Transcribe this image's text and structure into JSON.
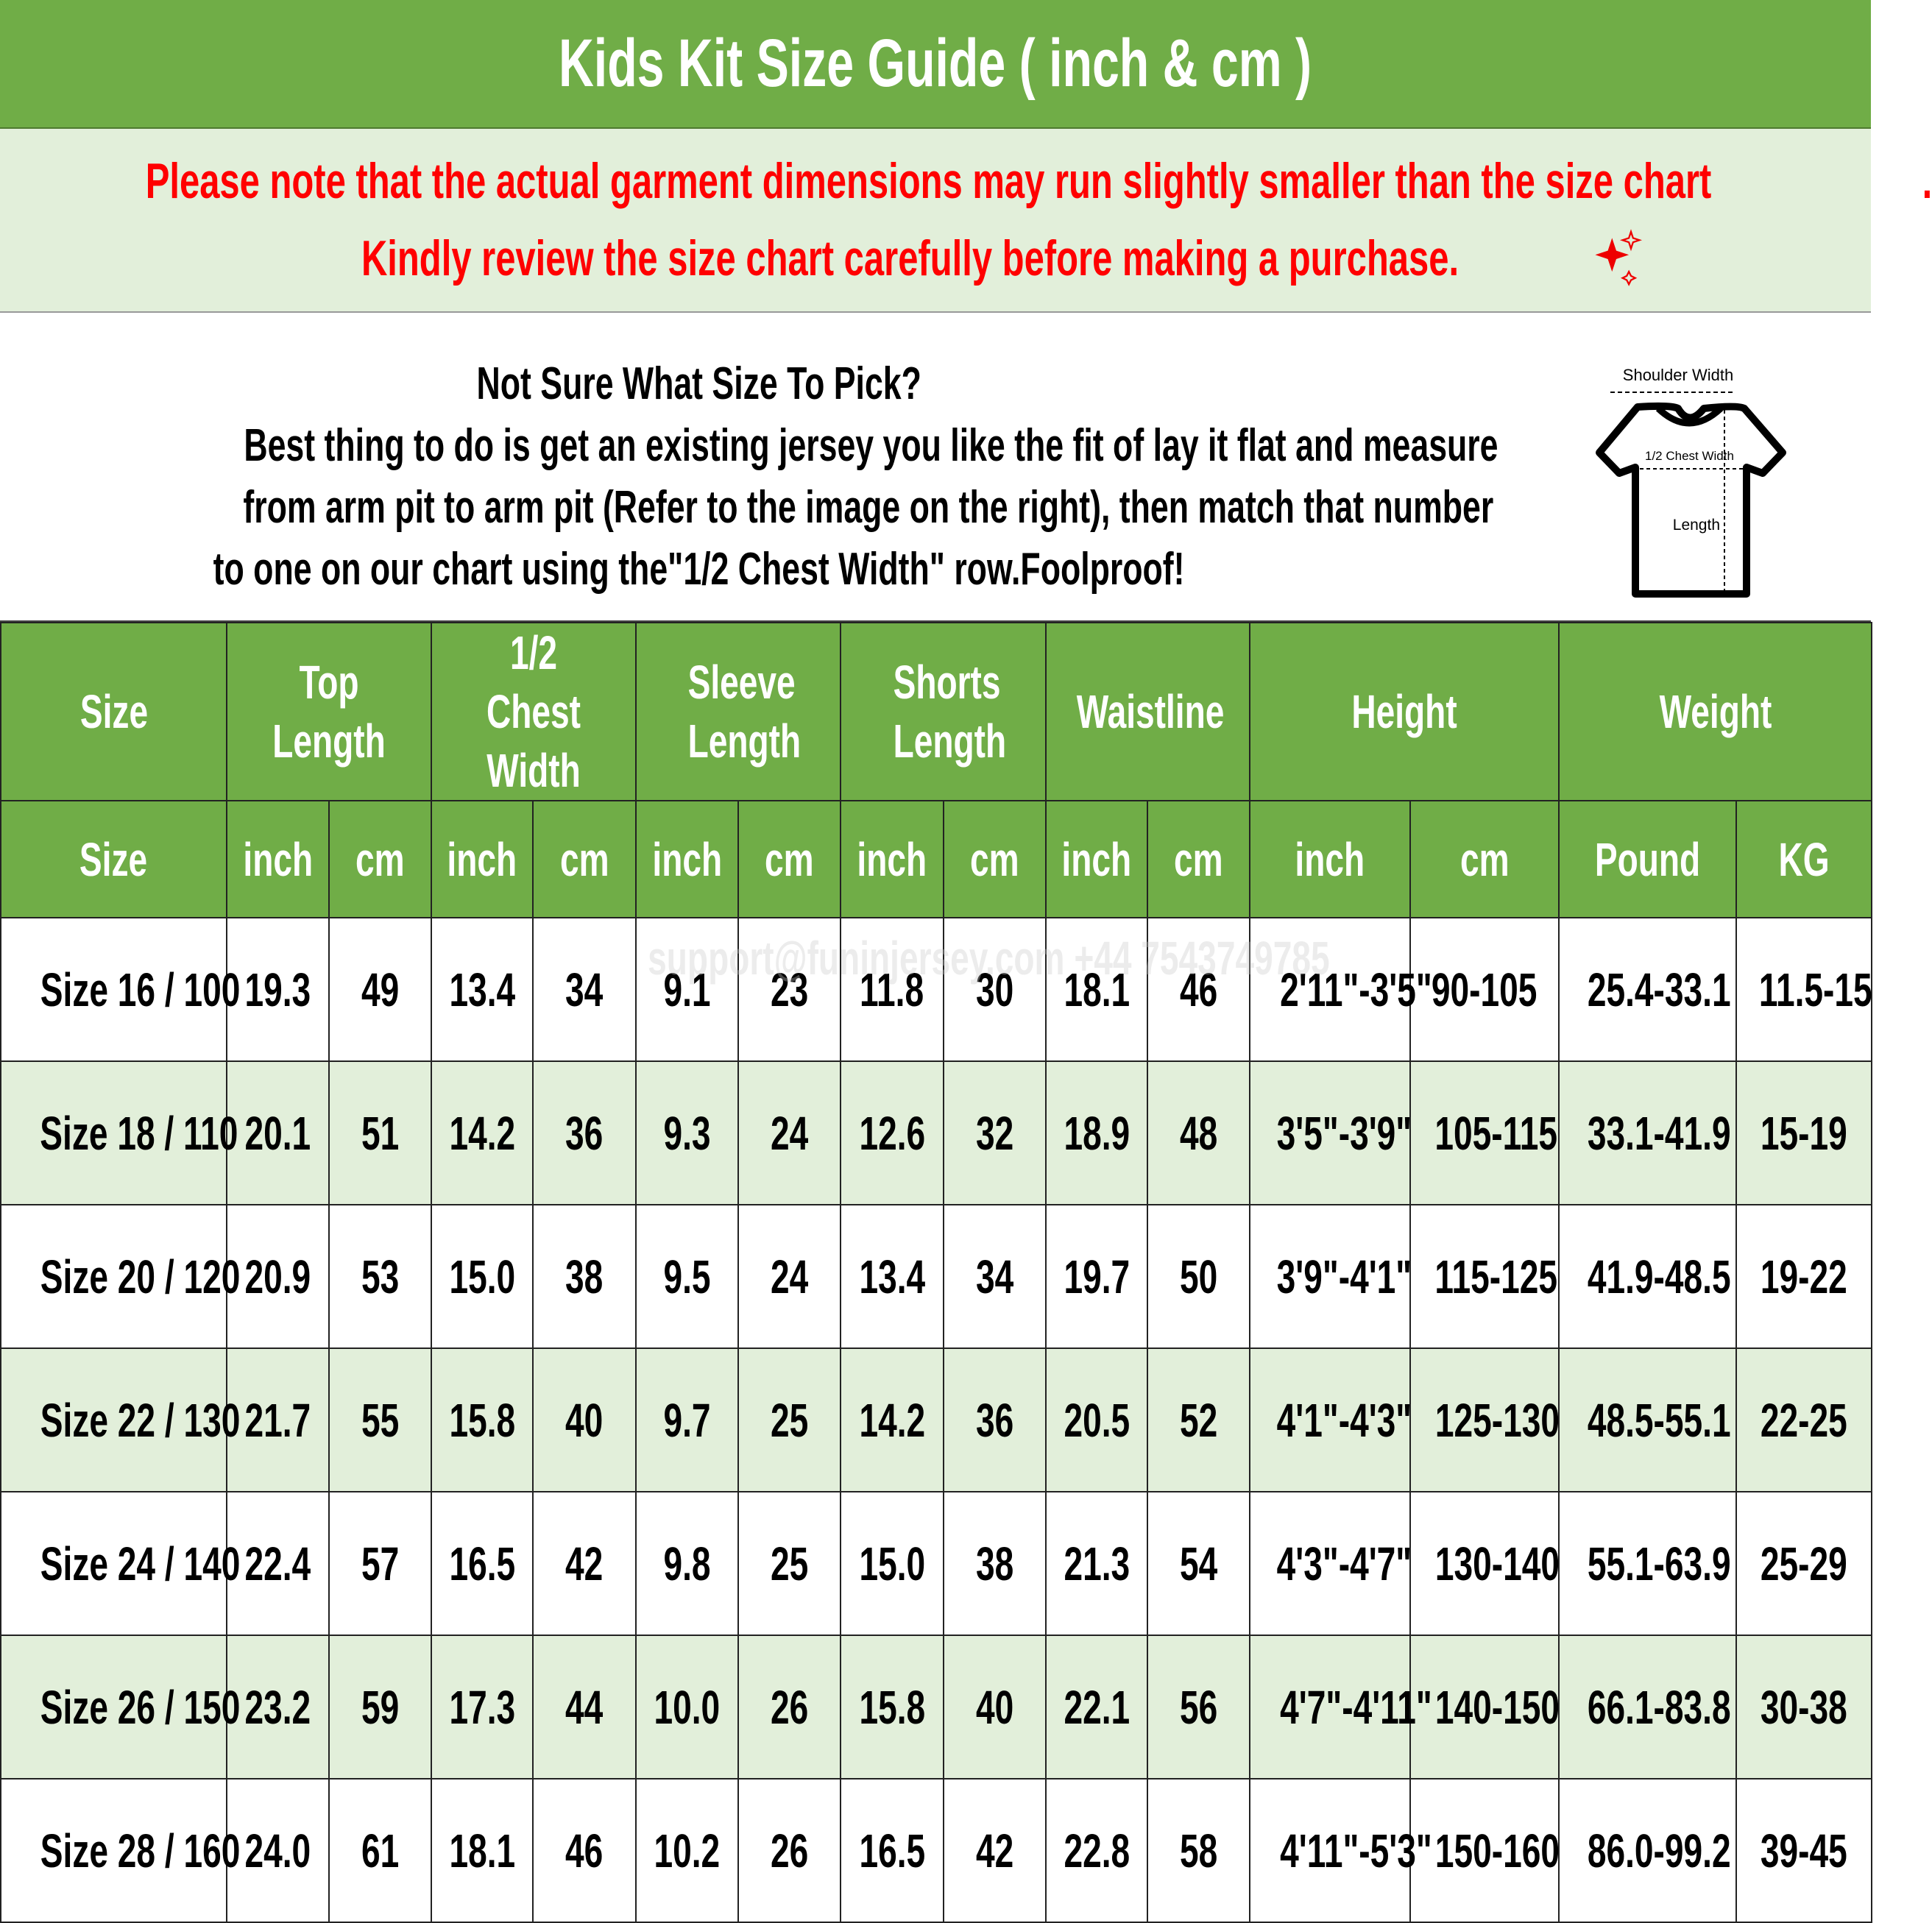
{
  "title": "Kids Kit Size Guide ( inch & cm )",
  "notice": {
    "line1": "Please note that the actual garment dimensions may run slightly smaller than the size chart",
    "line1_end": ".",
    "line2": "Kindly review the size chart carefully before making a purchase.",
    "pin_icon": "pushpin-icon",
    "ruler_icon": "ruler-icon",
    "sparkle_icon": "sparkle-icon"
  },
  "info": {
    "heading": "Not Sure What Size To Pick?",
    "lines": [
      "Best thing to do is get an existing jersey you like the fit of lay it flat and measure",
      "from arm pit to arm pit (Refer to the image on the right), then match that number",
      "to one on our chart using the\"1/2 Chest Width\" row.Foolproof!"
    ],
    "diagram": {
      "shoulder": "Shoulder Width",
      "chest": "1/2 Chest Width",
      "length": "Length"
    }
  },
  "watermark": "support@funinjersey.com +44 7543749785",
  "colors": {
    "header_green": "#70ad47",
    "alt_row": "#e2efda",
    "notice_red": "#ff0000"
  },
  "table": {
    "groups": [
      "Size",
      "Top Length",
      "1/2 Chest Width",
      "Sleeve Length",
      "Shorts Length",
      "Waistline",
      "Height",
      "Weight"
    ],
    "units": [
      "Size",
      "inch",
      "cm",
      "inch",
      "cm",
      "inch",
      "cm",
      "inch",
      "cm",
      "inch",
      "cm",
      "inch",
      "cm",
      "Pound",
      "KG"
    ],
    "rows": [
      [
        "Size 16 / 100",
        "19.3",
        "49",
        "13.4",
        "34",
        "9.1",
        "23",
        "11.8",
        "30",
        "18.1",
        "46",
        "2'11\"-3'5\"",
        "90-105",
        "25.4-33.1",
        "11.5-15"
      ],
      [
        "Size 18 / 110",
        "20.1",
        "51",
        "14.2",
        "36",
        "9.3",
        "24",
        "12.6",
        "32",
        "18.9",
        "48",
        "3'5\"-3'9\"",
        "105-115",
        "33.1-41.9",
        "15-19"
      ],
      [
        "Size 20 / 120",
        "20.9",
        "53",
        "15.0",
        "38",
        "9.5",
        "24",
        "13.4",
        "34",
        "19.7",
        "50",
        "3'9\"-4'1\"",
        "115-125",
        "41.9-48.5",
        "19-22"
      ],
      [
        "Size 22 / 130",
        "21.7",
        "55",
        "15.8",
        "40",
        "9.7",
        "25",
        "14.2",
        "36",
        "20.5",
        "52",
        "4'1\"-4'3\"",
        "125-130",
        "48.5-55.1",
        "22-25"
      ],
      [
        "Size 24 / 140",
        "22.4",
        "57",
        "16.5",
        "42",
        "9.8",
        "25",
        "15.0",
        "38",
        "21.3",
        "54",
        "4'3\"-4'7\"",
        "130-140",
        "55.1-63.9",
        "25-29"
      ],
      [
        "Size 26 / 150",
        "23.2",
        "59",
        "17.3",
        "44",
        "10.0",
        "26",
        "15.8",
        "40",
        "22.1",
        "56",
        "4'7\"-4'11\"",
        "140-150",
        "66.1-83.8",
        "30-38"
      ],
      [
        "Size 28 / 160",
        "24.0",
        "61",
        "18.1",
        "46",
        "10.2",
        "26",
        "16.5",
        "42",
        "22.8",
        "58",
        "4'11\"-5'3\"",
        "150-160",
        "86.0-99.2",
        "39-45"
      ]
    ]
  }
}
